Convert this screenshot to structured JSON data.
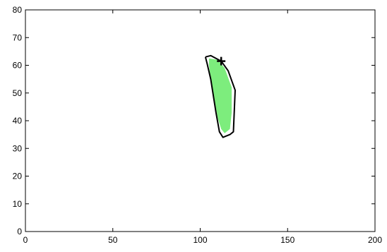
{
  "chart_data": {
    "type": "area",
    "title": "",
    "xlabel": "",
    "ylabel": "",
    "xlim": [
      0,
      200
    ],
    "ylim": [
      0,
      80
    ],
    "grid": false,
    "xticks": [
      0,
      50,
      100,
      150,
      200
    ],
    "yticks": [
      0,
      10,
      20,
      30,
      40,
      50,
      60,
      70,
      80
    ],
    "series": [
      {
        "kind": "outline",
        "color": "#000000",
        "points": [
          [
            103,
            63
          ],
          [
            106,
            63.5
          ],
          [
            112,
            61.5
          ],
          [
            116,
            58
          ],
          [
            120,
            51
          ],
          [
            119,
            36
          ],
          [
            117,
            35
          ],
          [
            113,
            34
          ],
          [
            111,
            36
          ],
          [
            109,
            43
          ],
          [
            106,
            55
          ],
          [
            104,
            60.5
          ],
          [
            103,
            63
          ]
        ]
      },
      {
        "kind": "filled",
        "color": "#7ded7d",
        "points": [
          [
            105,
            62.5
          ],
          [
            110,
            62
          ],
          [
            114,
            59
          ],
          [
            118,
            52
          ],
          [
            118,
            43
          ],
          [
            117,
            37
          ],
          [
            114,
            35.5
          ],
          [
            112,
            37
          ],
          [
            110,
            41
          ],
          [
            108,
            48
          ],
          [
            106,
            55
          ],
          [
            105,
            60
          ]
        ]
      },
      {
        "kind": "marker",
        "marker": "+",
        "color": "#000000",
        "points": [
          [
            112,
            61.5
          ]
        ]
      }
    ]
  }
}
